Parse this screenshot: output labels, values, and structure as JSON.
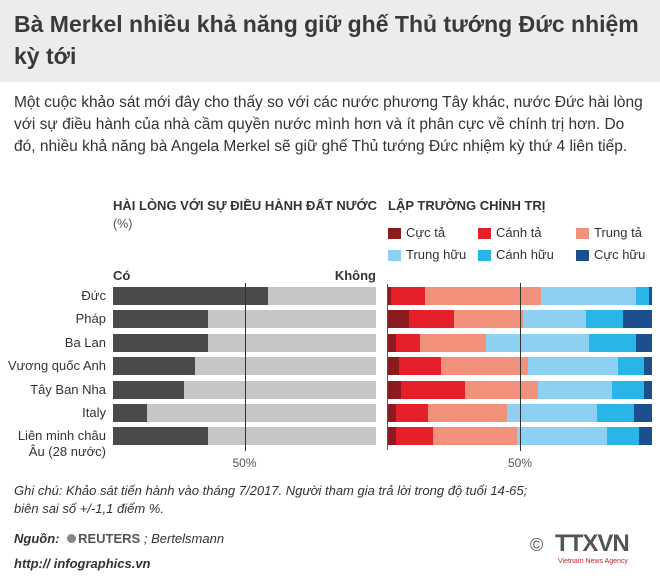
{
  "title": "Bà Merkel nhiều khả năng giữ ghế Thủ tướng Đức nhiệm kỳ tới",
  "description": "Một cuộc khảo sát mới đây cho thấy so với các nước phương Tây khác, nước Đức hài lòng với sự điều hành của nhà cầm quyền nước mình hơn và ít phân cực về chính trị hơn. Do đó, nhiều khả năng bà Angela Merkel sẽ giữ ghế Thủ tướng Đức nhiệm kỳ thứ 4 liên tiếp.",
  "chart_data": [
    {
      "type": "bar",
      "orientation": "horizontal",
      "stacked": true,
      "title": "HÀI LÒNG VỚI SỰ ĐIỀU HÀNH ĐẤT NƯỚC",
      "subtitle": "(%)",
      "categories": [
        "Đức",
        "Pháp",
        "Ba Lan",
        "Vương quốc Anh",
        "Tây Ban Nha",
        "Italy",
        "Liên minh châu Âu (28 nước)"
      ],
      "series": [
        {
          "name": "Có",
          "color": "#4a4a4a",
          "values": [
            59,
            36,
            36,
            31,
            27,
            13,
            36
          ]
        },
        {
          "name": "Không",
          "color": "#c6c6c6",
          "values": [
            41,
            64,
            64,
            69,
            73,
            87,
            64
          ]
        }
      ],
      "xlim": [
        0,
        100
      ],
      "xticks": [
        {
          "value": 50,
          "label": "50%"
        }
      ],
      "legend": "top"
    },
    {
      "type": "bar",
      "orientation": "horizontal",
      "stacked": true,
      "title": "LẬP TRƯỜNG CHÍNH TRỊ",
      "series": [
        {
          "name": "Cực tả",
          "color": "#8c1b1f",
          "values": [
            1,
            8,
            3,
            4,
            5,
            3,
            3
          ]
        },
        {
          "name": "Cánh tả",
          "color": "#e5202b",
          "values": [
            13,
            17,
            9,
            16,
            24,
            12,
            14
          ]
        },
        {
          "name": "Trung tả",
          "color": "#f3927c",
          "values": [
            44,
            26,
            25,
            33,
            28,
            30,
            32
          ]
        },
        {
          "name": "Trung hữu",
          "color": "#8dd0f2",
          "values": [
            36,
            24,
            39,
            34,
            28,
            34,
            34
          ]
        },
        {
          "name": "Cánh hữu",
          "color": "#29b5e8",
          "values": [
            5,
            14,
            18,
            10,
            12,
            14,
            12
          ]
        },
        {
          "name": "Cực hữu",
          "color": "#1c4f8e",
          "values": [
            1,
            11,
            6,
            3,
            3,
            7,
            5
          ]
        }
      ],
      "xlim": [
        0,
        100
      ],
      "xticks": [
        {
          "value": 50,
          "label": "50%"
        }
      ],
      "legend": "top"
    }
  ],
  "note": [
    "Ghi chú: Khảo sát tiến hành vào tháng 7/2017. Người tham gia trả lời trong độ tuổi 14-65;",
    "biên sai số +/-1,1 điểm %."
  ],
  "source": {
    "label": "Nguồn:",
    "reuters": "REUTERS",
    "text": "; Bertelsmann"
  },
  "footer": {
    "url": "http:// infographics.vn",
    "copyright": "©",
    "logo": "TTXVN",
    "logo_sub": "Vietnam News Agency"
  }
}
